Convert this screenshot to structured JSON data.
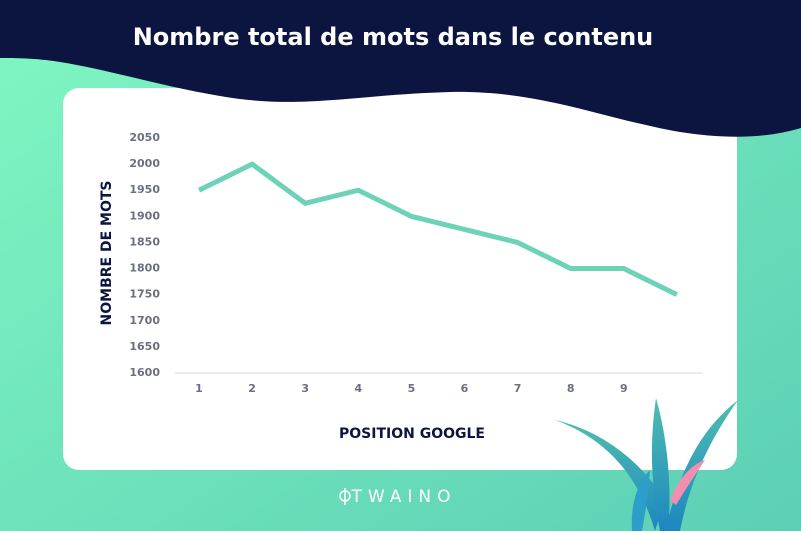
{
  "chart_data": {
    "type": "line",
    "title": "Nombre total de mots dans le contenu",
    "x_label": "POSITION GOOGLE",
    "y_label": "NOMBRE DE MOTS",
    "categories": [
      "1",
      "2",
      "3",
      "4",
      "5",
      "6",
      "7",
      "8",
      "9",
      null
    ],
    "values": [
      1950,
      2000,
      1925,
      1950,
      1900,
      1875,
      1850,
      1800,
      1800,
      1750
    ],
    "color": "#6dd3b8",
    "ylim": [
      1600,
      2050
    ],
    "yticks": [
      1600,
      1650,
      1700,
      1750,
      1800,
      1850,
      1900,
      1950,
      2000,
      2050
    ],
    "grid": false
  },
  "brand": "TWAINO"
}
